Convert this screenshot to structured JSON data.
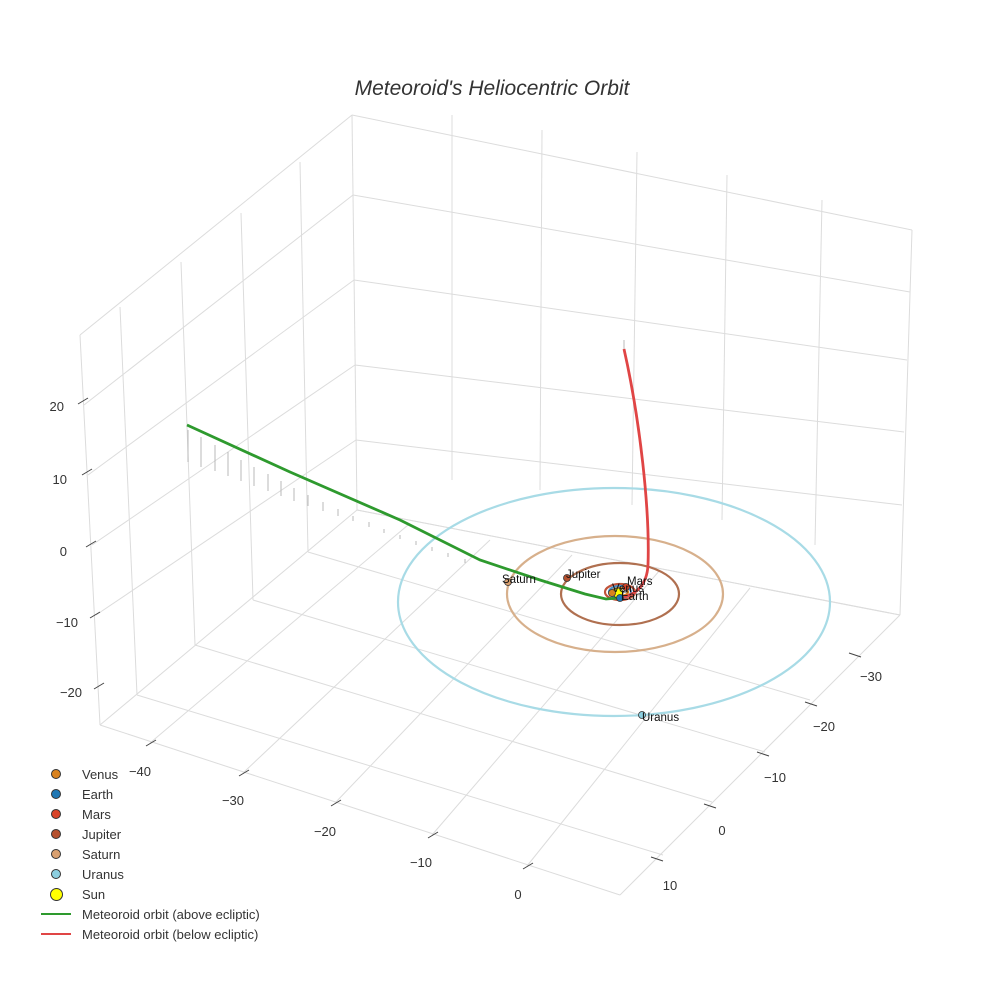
{
  "chart_data": {
    "type": "scatter3d",
    "title": "Meteoroid's Heliocentric Orbit",
    "x_ticks": [
      "−40",
      "−30",
      "−20",
      "−10",
      "0"
    ],
    "y_ticks": [
      "−30",
      "−20",
      "−10",
      "0",
      "10"
    ],
    "z_ticks": [
      "20",
      "10",
      "0",
      "−10",
      "−20"
    ],
    "planets": [
      {
        "name": "Venus",
        "color": "#d9821f",
        "orbit_radius_au": 0.72,
        "orbit_color": "#d9821f"
      },
      {
        "name": "Earth",
        "color": "#1f77b4",
        "orbit_radius_au": 1.0,
        "orbit_color": "#4a90c8"
      },
      {
        "name": "Mars",
        "color": "#d9442a",
        "orbit_radius_au": 1.52,
        "orbit_color": "#c0533a"
      },
      {
        "name": "Jupiter",
        "color": "#b5502e",
        "orbit_radius_au": 5.2,
        "orbit_color": "#b07050"
      },
      {
        "name": "Saturn",
        "color": "#d9a070",
        "orbit_radius_au": 9.5,
        "orbit_color": "#d7b08c"
      },
      {
        "name": "Uranus",
        "color": "#8ccfe0",
        "orbit_radius_au": 19.2,
        "orbit_color": "#a8dbe6"
      }
    ],
    "sun": {
      "name": "Sun",
      "color": "#ffff00"
    },
    "meteoroid": [
      {
        "name": "Meteoroid orbit (above ecliptic)",
        "color": "#2e9a2e"
      },
      {
        "name": "Meteoroid orbit (below ecliptic)",
        "color": "#e04545"
      }
    ]
  }
}
